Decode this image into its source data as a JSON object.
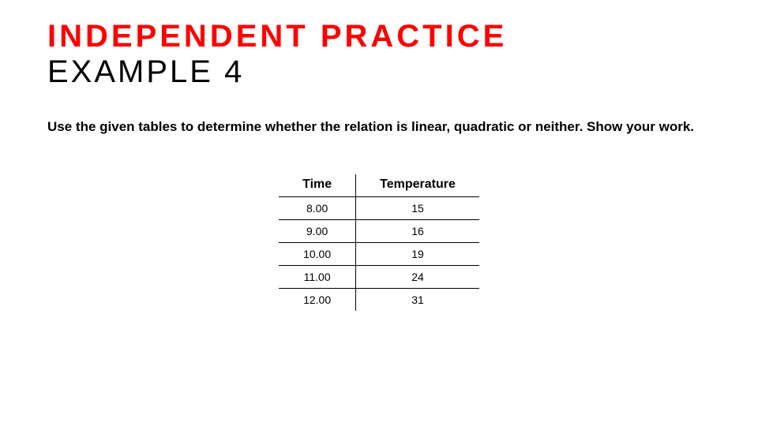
{
  "title_line1": "INDEPENDENT PRACTICE",
  "title_line2": "EXAMPLE 4",
  "instructions": "Use the given tables to determine whether the relation is linear, quadratic or neither. Show your work.",
  "table": {
    "columns": [
      "Time",
      "Temperature"
    ],
    "rows": [
      [
        "8.00",
        "15"
      ],
      [
        "9.00",
        "16"
      ],
      [
        "10.00",
        "19"
      ],
      [
        "11.00",
        "24"
      ],
      [
        "12.00",
        "31"
      ]
    ],
    "header_fontsize": 16,
    "cell_fontsize": 14,
    "border_color": "#000000",
    "background_color": "#ffffff"
  },
  "colors": {
    "title_red": "#ff0000",
    "text_black": "#000000",
    "background": "#ffffff"
  }
}
